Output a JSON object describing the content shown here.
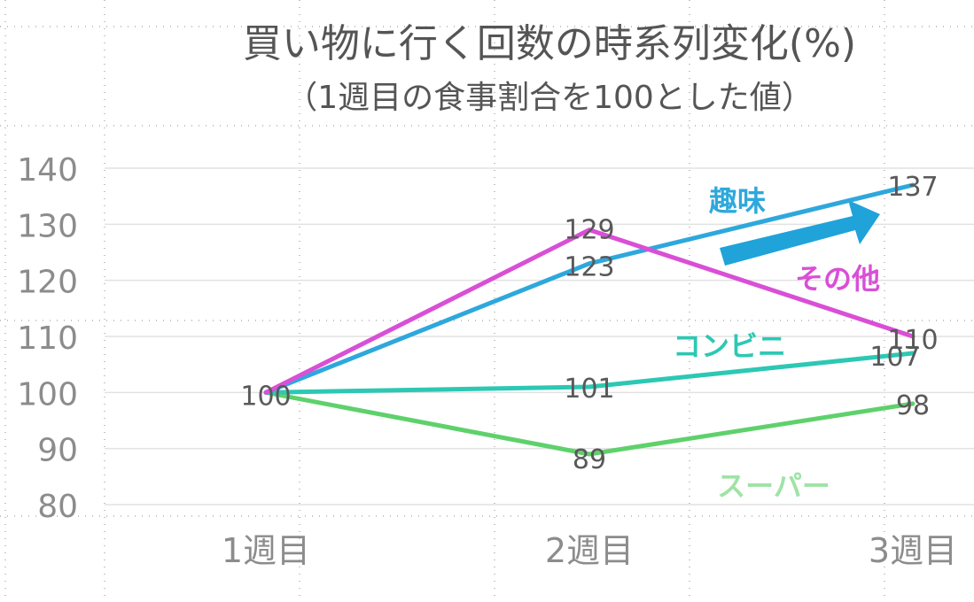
{
  "chart_data": {
    "type": "line",
    "title": "買い物に行く回数の時系列変化(%)",
    "subtitle": "（1週目の食事割合を100とした値）",
    "categories": [
      "1週目",
      "2週目",
      "3週目"
    ],
    "yticks": [
      "140",
      "130",
      "120",
      "110",
      "100",
      "90",
      "80"
    ],
    "ylim": [
      80,
      140
    ],
    "grid": true,
    "legend": "inline labels on lines",
    "series": [
      {
        "name": "スーパー",
        "values": [
          100,
          89,
          98
        ],
        "color": "#5ed16b",
        "label_color": "#9fe3a6"
      },
      {
        "name": "コンビニ",
        "values": [
          100,
          101,
          107
        ],
        "color": "#2cc8b4",
        "label_color": "#2cc8b4"
      },
      {
        "name": "趣味",
        "values": [
          100,
          123,
          137
        ],
        "color": "#2ea8dc",
        "label_color": "#2ea8dc"
      },
      {
        "name": "その他",
        "values": [
          100,
          129,
          110
        ],
        "color": "#d94fd6",
        "label_color": "#d94fd6"
      }
    ],
    "data_labels": {
      "スーパー": [
        "",
        "89",
        "98"
      ],
      "コンビニ": [
        "",
        "101",
        "107"
      ],
      "趣味": [
        "",
        "123",
        "137"
      ],
      "その他": [
        "100",
        "129",
        "110"
      ]
    },
    "annotation": {
      "type": "arrow",
      "color": "#1fa3d9"
    }
  }
}
